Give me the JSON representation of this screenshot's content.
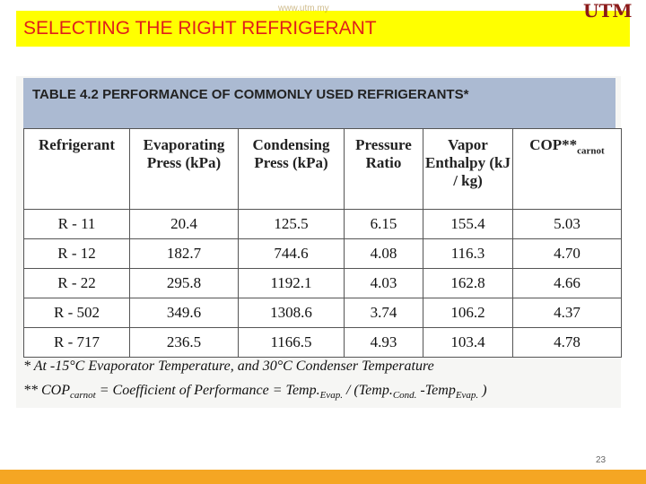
{
  "header": {
    "title": "SELECTING THE RIGHT REFRIGERANT",
    "url": "www.utm.my",
    "logo": "UTM"
  },
  "table": {
    "caption": "TABLE 4.2  PERFORMANCE OF COMMONLY USED REFRIGERANTS*",
    "columns": [
      {
        "text": "Refrigerant"
      },
      {
        "text": "Evaporating Press (kPa)"
      },
      {
        "text": "Condensing Press (kPa)"
      },
      {
        "text": "Pressure Ratio"
      },
      {
        "text": "Vapor Enthalpy (kJ / kg)"
      },
      {
        "text": "COP**",
        "sub": "carnot"
      }
    ],
    "rows": [
      [
        "R - 11",
        "20.4",
        "125.5",
        "6.15",
        "155.4",
        "5.03"
      ],
      [
        "R - 12",
        "182.7",
        "744.6",
        "4.08",
        "116.3",
        "4.70"
      ],
      [
        "R - 22",
        "295.8",
        "1192.1",
        "4.03",
        "162.8",
        "4.66"
      ],
      [
        "R - 502",
        "349.6",
        "1308.6",
        "3.74",
        "106.2",
        "4.37"
      ],
      [
        "R - 717",
        "236.5",
        "1166.5",
        "4.93",
        "103.4",
        "4.78"
      ]
    ]
  },
  "footnotes": [
    "*  At -15°C Evaporator Temperature, and 30°C Condenser Temperature",
    [
      "**  COP",
      "carnot",
      " = Coefficient of Performance = Temp.",
      "Evap.",
      " / (Temp.",
      "Cond.",
      " -Temp",
      "Evap.",
      " )"
    ]
  ],
  "page_number": "23"
}
